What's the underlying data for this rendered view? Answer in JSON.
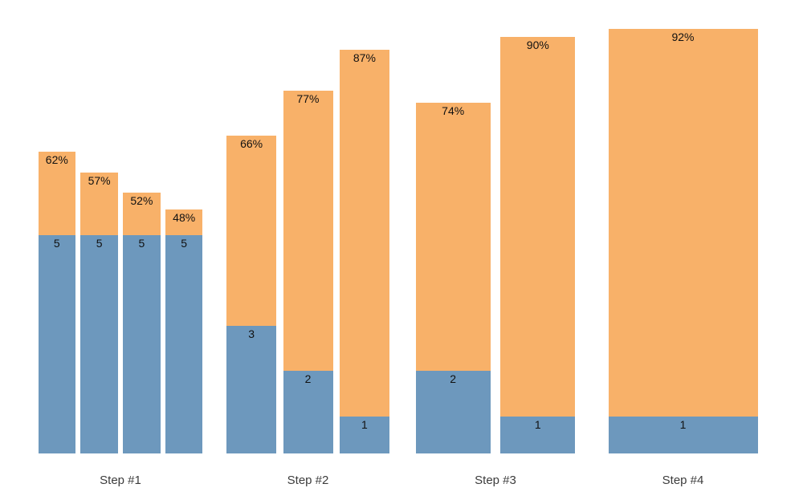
{
  "chart_data": {
    "type": "bar",
    "subtype": "grouped-stacked",
    "title": "",
    "xlabel": "",
    "ylabel": "",
    "grid": false,
    "legend": "none",
    "background_color": "#ffffff",
    "colors": {
      "bottom_segment": "#6d98bd",
      "top_segment": "#f8b169",
      "bar_label_text": "#111111",
      "axis_label_text": "#3c3c3c"
    },
    "categories": [
      "Step #1",
      "Step #2",
      "Step #3",
      "Step #4"
    ],
    "groups": [
      {
        "label": "Step #1",
        "bars": [
          {
            "pct": 62,
            "pct_label": "62%",
            "count": 5,
            "count_label": "5"
          },
          {
            "pct": 57,
            "pct_label": "57%",
            "count": 5,
            "count_label": "5"
          },
          {
            "pct": 52,
            "pct_label": "52%",
            "count": 5,
            "count_label": "5"
          },
          {
            "pct": 48,
            "pct_label": "48%",
            "count": 5,
            "count_label": "5"
          }
        ]
      },
      {
        "label": "Step #2",
        "bars": [
          {
            "pct": 66,
            "pct_label": "66%",
            "count": 3,
            "count_label": "3"
          },
          {
            "pct": 77,
            "pct_label": "77%",
            "count": 2,
            "count_label": "2"
          },
          {
            "pct": 87,
            "pct_label": "87%",
            "count": 1,
            "count_label": "1"
          }
        ]
      },
      {
        "label": "Step #3",
        "bars": [
          {
            "pct": 74,
            "pct_label": "74%",
            "count": 2,
            "count_label": "2"
          },
          {
            "pct": 90,
            "pct_label": "90%",
            "count": 1,
            "count_label": "1"
          }
        ]
      },
      {
        "label": "Step #4",
        "bars": [
          {
            "pct": 92,
            "pct_label": "92%",
            "count": 1,
            "count_label": "1"
          }
        ]
      }
    ]
  }
}
